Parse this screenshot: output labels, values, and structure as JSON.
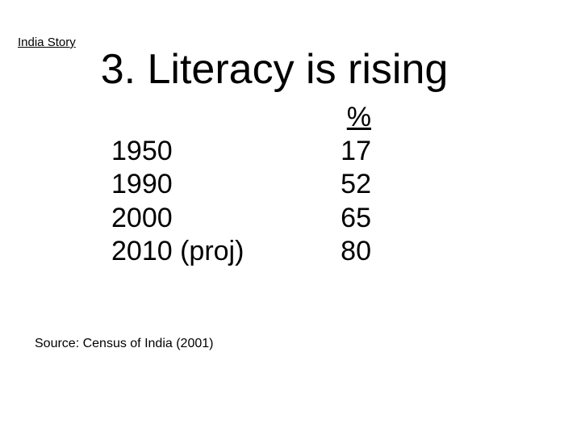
{
  "slide": {
    "header": "India Story",
    "title": "3. Literacy is rising",
    "source": "Source: Census of India (2001)",
    "colors": {
      "background": "#ffffff",
      "text": "#000000"
    },
    "table": {
      "value_header": "%",
      "rows": [
        {
          "year": "1950",
          "value": "17"
        },
        {
          "year": "1990",
          "value": "52"
        },
        {
          "year": "2000",
          "value": "65"
        },
        {
          "year": "2010 (proj)",
          "value": "80"
        }
      ]
    }
  },
  "chart_data": {
    "type": "table",
    "title": "3. Literacy is rising",
    "categories": [
      "1950",
      "1990",
      "2000",
      "2010 (proj)"
    ],
    "values": [
      17,
      52,
      65,
      80
    ],
    "value_unit": "%",
    "source": "Source: Census of India (2001)"
  }
}
